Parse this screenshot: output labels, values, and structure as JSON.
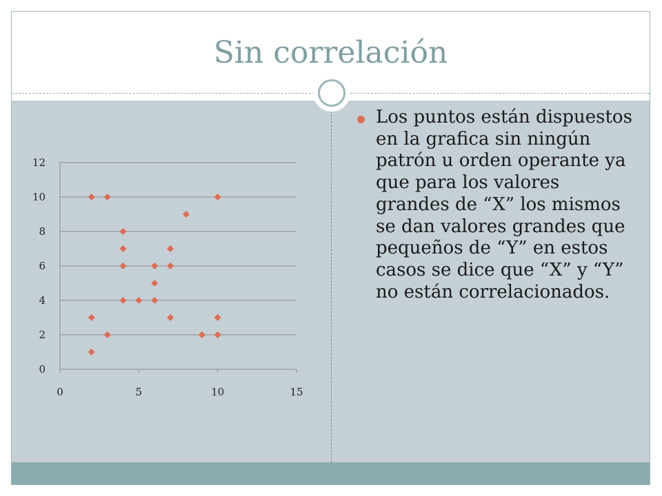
{
  "slide": {
    "title": "Sin correlación",
    "bullet": "Los puntos están dispuestos en la grafica sin ningún patrón u orden operante ya que para los valores grandes de “X” los mismos se dan valores grandes que pequeños de “Y” en estos casos se dice que “X” y “Y” no están correlacionados."
  },
  "colors": {
    "title": "#7f9ea2",
    "panel": "#c5cfd6",
    "footer": "#8cabae",
    "marker": "#d96f57",
    "bullet": "#d96f57"
  },
  "chart_data": {
    "type": "scatter",
    "title": "",
    "xlabel": "",
    "ylabel": "",
    "xlim": [
      0,
      15
    ],
    "ylim": [
      0,
      12
    ],
    "x_ticks": [
      0,
      5,
      10,
      15
    ],
    "y_ticks": [
      0,
      2,
      4,
      6,
      8,
      10,
      12
    ],
    "grid": "horizontal",
    "marker": "diamond",
    "legend": "none",
    "series": [
      {
        "points": [
          [
            2,
            10
          ],
          [
            3,
            10
          ],
          [
            10,
            10
          ],
          [
            8,
            9
          ],
          [
            4,
            8
          ],
          [
            4,
            7
          ],
          [
            7,
            7
          ],
          [
            4,
            6
          ],
          [
            6,
            6
          ],
          [
            7,
            6
          ],
          [
            6,
            5
          ],
          [
            4,
            4
          ],
          [
            5,
            4
          ],
          [
            6,
            4
          ],
          [
            2,
            3
          ],
          [
            7,
            3
          ],
          [
            10,
            3
          ],
          [
            3,
            2
          ],
          [
            9,
            2
          ],
          [
            10,
            2
          ],
          [
            2,
            1
          ]
        ]
      }
    ]
  }
}
